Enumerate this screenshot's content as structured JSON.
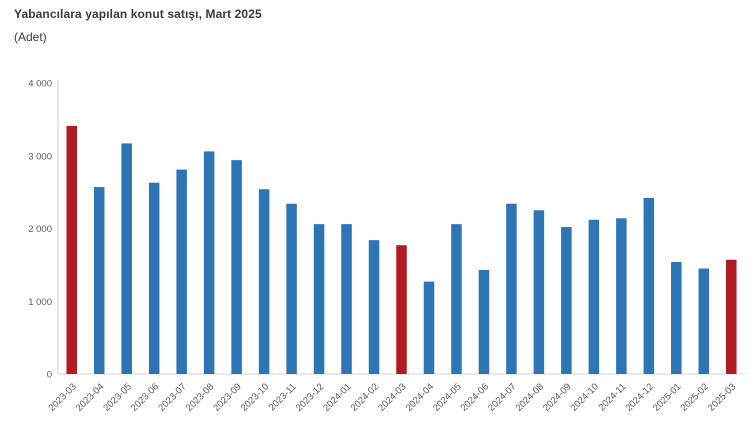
{
  "header": {
    "title": "Yabancılara yapılan konut satışı, Mart 2025",
    "subtitle": "(Adet)"
  },
  "colors": {
    "background": "#ffffff",
    "bar_blue": "#2e75b6",
    "bar_red": "#b11a21",
    "axis_line": "#d6d6d6",
    "tick_text": "#595959",
    "title_text": "#3a3a3a"
  },
  "chart_data": {
    "type": "bar",
    "title": "Yabancılara yapılan konut satışı, Mart 2025",
    "subtitle": "(Adet)",
    "xlabel": "",
    "ylabel": "",
    "categories": [
      "2023-03",
      "2023-04",
      "2023-05",
      "2023-06",
      "2023-07",
      "2023-08",
      "2023-09",
      "2023-10",
      "2023-11",
      "2023-12",
      "2024-01",
      "2024-02",
      "2024-03",
      "2024-04",
      "2024-05",
      "2024-06",
      "2024-07",
      "2024-08",
      "2024-09",
      "2024-10",
      "2024-11",
      "2024-12",
      "2025-01",
      "2025-02",
      "2025-03"
    ],
    "values": [
      3410,
      2570,
      3170,
      2630,
      2810,
      3060,
      2940,
      2540,
      2340,
      2060,
      2060,
      1840,
      1770,
      1270,
      2060,
      1430,
      2340,
      2250,
      2020,
      2120,
      2140,
      2420,
      1540,
      1450,
      1570
    ],
    "highlight_indices": [
      0,
      12,
      24
    ],
    "series_colors": {
      "default": "#2e75b6",
      "highlight": "#b11a21"
    },
    "ylim": [
      0,
      4000
    ],
    "yticks": [
      {
        "value": 0,
        "label": "0"
      },
      {
        "value": 1000,
        "label": "1 000"
      },
      {
        "value": 2000,
        "label": "2 000"
      },
      {
        "value": 3000,
        "label": "3 000"
      },
      {
        "value": 4000,
        "label": "4 000"
      }
    ],
    "grid": false,
    "legend": false,
    "x_tick_rotation": -45
  }
}
